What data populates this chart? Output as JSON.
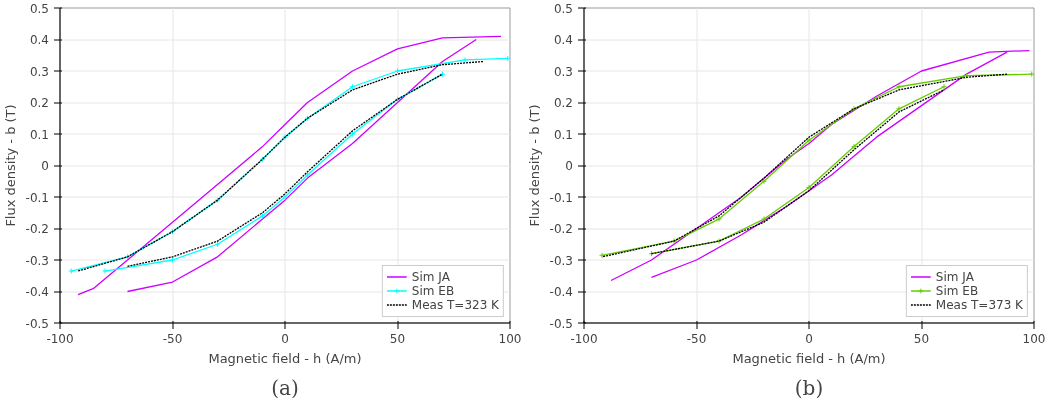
{
  "chart_data": [
    {
      "type": "line",
      "xlabel": "Magnetic field - h (A/m)",
      "ylabel": "Flux density - b (T)",
      "annotations": [
        "(a)"
      ],
      "xlim": [
        -100,
        100
      ],
      "ylim": [
        -0.5,
        0.5
      ],
      "xticks": [
        -100,
        -50,
        0,
        50,
        100
      ],
      "yticks": [
        -0.5,
        -0.4,
        -0.3,
        -0.2,
        -0.1,
        0,
        0.1,
        0.2,
        0.3,
        0.4,
        0.5
      ],
      "grid": true,
      "legend": "bottom right",
      "series": [
        {
          "name": "Sim JA",
          "color": "#cc00ff",
          "marker": "none",
          "line_style": "solid",
          "x": [
            96,
            70,
            50,
            30,
            10,
            0,
            -10,
            -30,
            -50,
            -70,
            -85,
            -92
          ],
          "values": [
            0.41,
            0.405,
            0.37,
            0.3,
            0.2,
            0.13,
            0.06,
            -0.06,
            -0.18,
            -0.3,
            -0.39,
            -0.41
          ]
        },
        {
          "color": "#cc00ff",
          "marker": "none",
          "line_style": "solid",
          "x": [
            -70,
            -50,
            -30,
            -10,
            0,
            10,
            30,
            50,
            70,
            85
          ],
          "values": [
            -0.4,
            -0.37,
            -0.29,
            -0.17,
            -0.11,
            -0.04,
            0.07,
            0.2,
            0.33,
            0.4
          ]
        },
        {
          "name": "Sim EB",
          "color": "#00ffff",
          "marker": "cross",
          "line_style": "solid",
          "x": [
            99,
            80,
            50,
            30,
            10,
            0,
            -10,
            -30,
            -50,
            -70,
            -95
          ],
          "values": [
            0.34,
            0.335,
            0.3,
            0.25,
            0.15,
            0.09,
            0.02,
            -0.11,
            -0.21,
            -0.29,
            -0.335
          ]
        },
        {
          "color": "#00ffff",
          "marker": "cross",
          "line_style": "solid",
          "x": [
            -80,
            -50,
            -30,
            -10,
            0,
            10,
            30,
            50,
            70
          ],
          "values": [
            -0.335,
            -0.3,
            -0.25,
            -0.16,
            -0.1,
            -0.03,
            0.1,
            0.21,
            0.29
          ]
        },
        {
          "name": "Meas T=323 K",
          "color": "#000000",
          "marker": "none",
          "line_style": "dotted",
          "x": [
            88,
            70,
            50,
            30,
            10,
            0,
            -10,
            -30,
            -50,
            -70,
            -92
          ],
          "values": [
            0.33,
            0.32,
            0.29,
            0.24,
            0.15,
            0.09,
            0.02,
            -0.11,
            -0.21,
            -0.29,
            -0.335
          ]
        },
        {
          "color": "#000000",
          "marker": "none",
          "line_style": "dotted",
          "x": [
            -70,
            -50,
            -30,
            -10,
            0,
            10,
            30,
            50,
            70
          ],
          "values": [
            -0.32,
            -0.29,
            -0.24,
            -0.15,
            -0.09,
            -0.02,
            0.11,
            0.21,
            0.29
          ]
        }
      ]
    },
    {
      "type": "line",
      "xlabel": "Magnetic field - h (A/m)",
      "ylabel": "Flux density - b (T)",
      "annotations": [
        "(b)"
      ],
      "xlim": [
        -100,
        100
      ],
      "ylim": [
        -0.5,
        0.5
      ],
      "xticks": [
        -100,
        -50,
        0,
        50,
        100
      ],
      "yticks": [
        -0.5,
        -0.4,
        -0.3,
        -0.2,
        -0.1,
        0,
        0.1,
        0.2,
        0.3,
        0.4,
        0.5
      ],
      "grid": true,
      "legend": "bottom right",
      "series": [
        {
          "name": "Sim JA",
          "color": "#cc00ff",
          "marker": "none",
          "line_style": "solid",
          "x": [
            98,
            80,
            50,
            30,
            10,
            0,
            -10,
            -30,
            -50,
            -70,
            -88
          ],
          "values": [
            0.365,
            0.36,
            0.3,
            0.22,
            0.13,
            0.07,
            0.02,
            -0.1,
            -0.2,
            -0.3,
            -0.365
          ]
        },
        {
          "color": "#cc00ff",
          "marker": "none",
          "line_style": "solid",
          "x": [
            -70,
            -50,
            -30,
            -10,
            0,
            10,
            30,
            50,
            70,
            88
          ],
          "values": [
            -0.355,
            -0.3,
            -0.22,
            -0.13,
            -0.08,
            -0.03,
            0.09,
            0.19,
            0.29,
            0.36
          ]
        },
        {
          "name": "Sim EB",
          "color": "#66cc00",
          "marker": "cross",
          "line_style": "solid",
          "x": [
            99,
            70,
            40,
            20,
            0,
            -20,
            -40,
            -60,
            -92
          ],
          "values": [
            0.29,
            0.285,
            0.25,
            0.18,
            0.08,
            -0.05,
            -0.17,
            -0.24,
            -0.285
          ]
        },
        {
          "color": "#66cc00",
          "marker": "cross",
          "line_style": "solid",
          "x": [
            -70,
            -40,
            -20,
            0,
            20,
            40,
            60
          ],
          "values": [
            -0.28,
            -0.24,
            -0.17,
            -0.07,
            0.06,
            0.18,
            0.25
          ]
        },
        {
          "name": "Meas T=373 K",
          "color": "#000000",
          "marker": "none",
          "line_style": "dotted",
          "x": [
            88,
            70,
            40,
            20,
            0,
            -20,
            -40,
            -60,
            -92
          ],
          "values": [
            0.29,
            0.28,
            0.24,
            0.18,
            0.09,
            -0.04,
            -0.16,
            -0.24,
            -0.29
          ]
        },
        {
          "color": "#000000",
          "marker": "none",
          "line_style": "dotted",
          "x": [
            -70,
            -40,
            -20,
            0,
            20,
            40,
            60
          ],
          "values": [
            -0.28,
            -0.24,
            -0.18,
            -0.08,
            0.05,
            0.17,
            0.24
          ]
        }
      ]
    }
  ]
}
